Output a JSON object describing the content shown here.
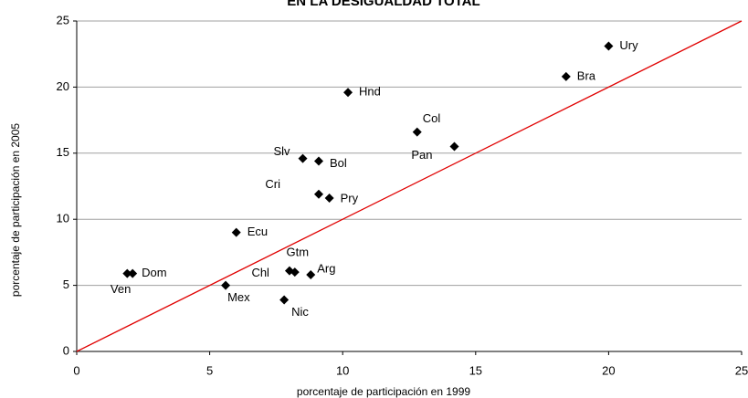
{
  "chart_data": {
    "type": "scatter",
    "title": "EN LA DESIGUALDAD TOTAL",
    "xlabel": "porcentaje de participación en 1999",
    "ylabel": "porcentaje de participación en 2005",
    "labels": [
      "Ury",
      "Bra",
      "Hnd",
      "Col",
      "Pan",
      "Slv",
      "Bol",
      "Cri",
      "Pry",
      "Ecu",
      "Chl",
      "Gtm",
      "Arg",
      "Mex",
      "Nic",
      "Ven",
      "Dom"
    ],
    "x": [
      20,
      18.4,
      10.2,
      12.8,
      14.2,
      8.5,
      9.1,
      9.1,
      9.5,
      6.0,
      8.0,
      8.2,
      8.8,
      5.6,
      7.8,
      1.9,
      2.1
    ],
    "y": [
      23.1,
      20.8,
      19.6,
      16.6,
      15.5,
      14.6,
      14.4,
      11.9,
      11.6,
      9.0,
      6.1,
      6.0,
      5.8,
      5.0,
      3.9,
      5.9,
      5.9
    ],
    "color": "#000000",
    "diagonal": {
      "x": [
        0,
        25
      ],
      "y": [
        0,
        25
      ],
      "color": "#e00000"
    },
    "xlim": [
      0,
      25
    ],
    "ylim": [
      0,
      25
    ],
    "xticks": [
      0,
      5,
      10,
      15,
      20,
      25
    ],
    "yticks": [
      0,
      5,
      10,
      15,
      20,
      25
    ],
    "grid": true
  }
}
